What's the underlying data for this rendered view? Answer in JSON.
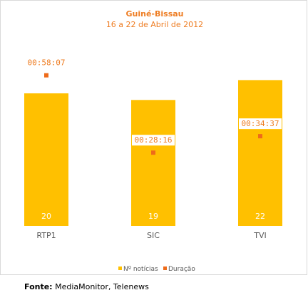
{
  "colors": {
    "bar": "#ffc000",
    "marker": "#ee6b1a",
    "text_accent": "#ee7d23",
    "label_box": "#ffffff"
  },
  "source": {
    "label": "Fonte:",
    "text": " MediaMonitor, Telenews"
  },
  "chart_data": {
    "type": "bar",
    "title": "Guiné-Bissau",
    "subtitle": "16 a 22 de Abril de 2012",
    "categories": [
      "RTP1",
      "SIC",
      "TVI"
    ],
    "series": [
      {
        "name": "Nº notícias",
        "type": "bar",
        "values": [
          20,
          19,
          22
        ],
        "labels": [
          "20",
          "19",
          "22"
        ]
      },
      {
        "name": "Duração",
        "type": "scatter",
        "values_seconds": [
          3487,
          1696,
          2077
        ],
        "labels": [
          "00:58:07",
          "00:28:16",
          "00:34:37"
        ]
      }
    ],
    "legend": {
      "position": "bottom",
      "entries": [
        "Nº notícias",
        "Duração"
      ]
    },
    "grid": false
  }
}
